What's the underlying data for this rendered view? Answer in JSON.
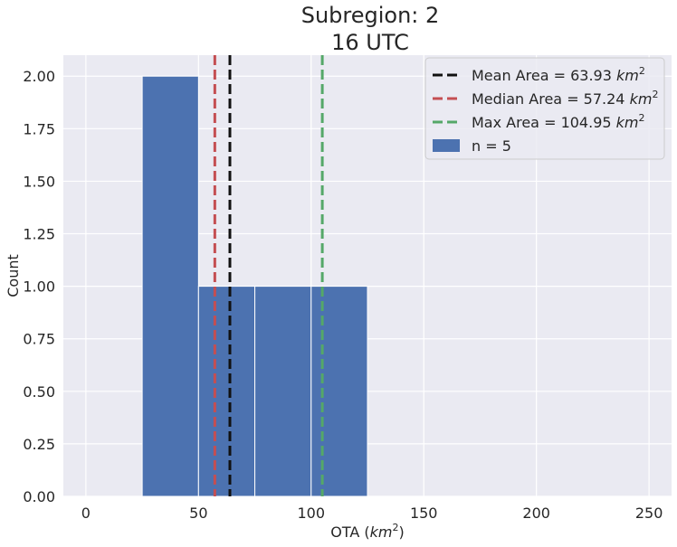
{
  "chart_data": {
    "type": "bar",
    "title_line1": "Subregion: 2",
    "title_line2": "16 UTC",
    "xlabel": "OTA",
    "xlabel_unit": "km",
    "xlabel_unit_exp": "2",
    "ylabel": "Count",
    "xlim": [
      -10,
      260
    ],
    "ylim": [
      0,
      2.1
    ],
    "x_ticks": [
      0,
      50,
      100,
      150,
      200,
      250
    ],
    "x_tick_labels": [
      "0",
      "50",
      "100",
      "150",
      "200",
      "250"
    ],
    "y_ticks": [
      0,
      0.25,
      0.5,
      0.75,
      1.0,
      1.25,
      1.5,
      1.75,
      2.0
    ],
    "y_tick_labels": [
      "0.00",
      "0.25",
      "0.50",
      "0.75",
      "1.00",
      "1.25",
      "1.50",
      "1.75",
      "2.00"
    ],
    "grid": true,
    "legend_position": "top-right",
    "bins": [
      {
        "start": 25,
        "end": 50,
        "count": 2
      },
      {
        "start": 50,
        "end": 75,
        "count": 1
      },
      {
        "start": 75,
        "end": 100,
        "count": 1
      },
      {
        "start": 100,
        "end": 125,
        "count": 1
      }
    ],
    "bar_color": "#4c72b0",
    "histogram_label": "n = 5",
    "vlines": [
      {
        "x": 63.93,
        "color": "#111111",
        "label_prefix": "Mean Area = 63.93 ",
        "label_unit": "km",
        "label_exp": "2"
      },
      {
        "x": 57.24,
        "color": "#c44e52",
        "label_prefix": "Median Area = 57.24 ",
        "label_unit": "km",
        "label_exp": "2"
      },
      {
        "x": 104.95,
        "color": "#55a868",
        "label_prefix": "Max Area = 104.95 ",
        "label_unit": "km",
        "label_exp": "2"
      }
    ]
  }
}
